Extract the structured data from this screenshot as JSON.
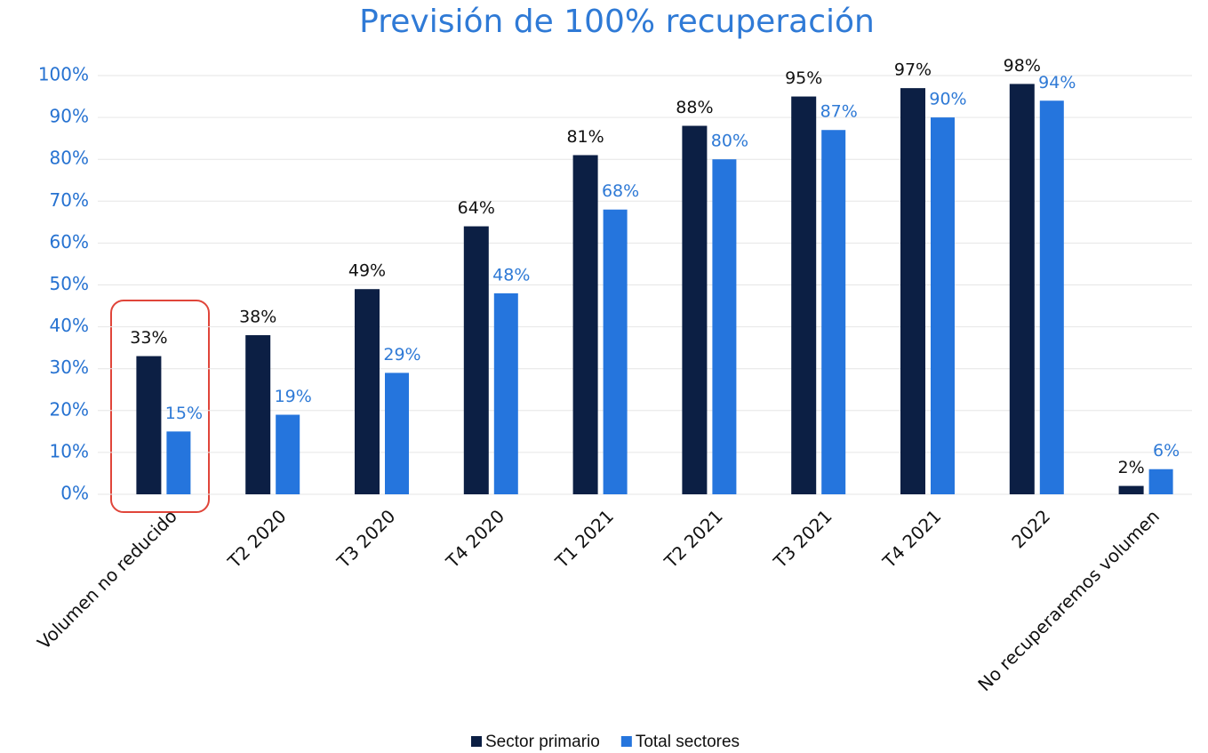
{
  "chart_data": {
    "type": "bar",
    "title": "Previsión de 100% recuperación",
    "categories": [
      "Volumen no reducido",
      "T2 2020",
      "T3 2020",
      "T4 2020",
      "T1 2021",
      "T2 2021",
      "T3 2021",
      "T4 2021",
      "2022",
      "No recuperaremos volumen"
    ],
    "series": [
      {
        "name": "Sector primario",
        "color": "#0c1f44",
        "values": [
          33,
          38,
          49,
          64,
          81,
          88,
          95,
          97,
          98,
          2
        ],
        "value_labels": [
          "33%",
          "38%",
          "49%",
          "64%",
          "81%",
          "88%",
          "95%",
          "97%",
          "98%",
          "2%"
        ]
      },
      {
        "name": "Total sectores",
        "color": "#2575dd",
        "values": [
          15,
          19,
          29,
          48,
          68,
          80,
          87,
          90,
          94,
          6
        ],
        "value_labels": [
          "15%",
          "19%",
          "29%",
          "48%",
          "68%",
          "80%",
          "87%",
          "90%",
          "94%",
          "6%"
        ]
      }
    ],
    "ylim": [
      0,
      100
    ],
    "yticks": [
      {
        "value": 0,
        "label": "0%"
      },
      {
        "value": 10,
        "label": "10%"
      },
      {
        "value": 20,
        "label": "20%"
      },
      {
        "value": 30,
        "label": "30%"
      },
      {
        "value": 40,
        "label": "40%"
      },
      {
        "value": 50,
        "label": "50%"
      },
      {
        "value": 60,
        "label": "60%"
      },
      {
        "value": 70,
        "label": "70%"
      },
      {
        "value": 80,
        "label": "80%"
      },
      {
        "value": 90,
        "label": "90%"
      },
      {
        "value": 100,
        "label": "100%"
      }
    ],
    "grid": true,
    "legend": "bottom"
  }
}
